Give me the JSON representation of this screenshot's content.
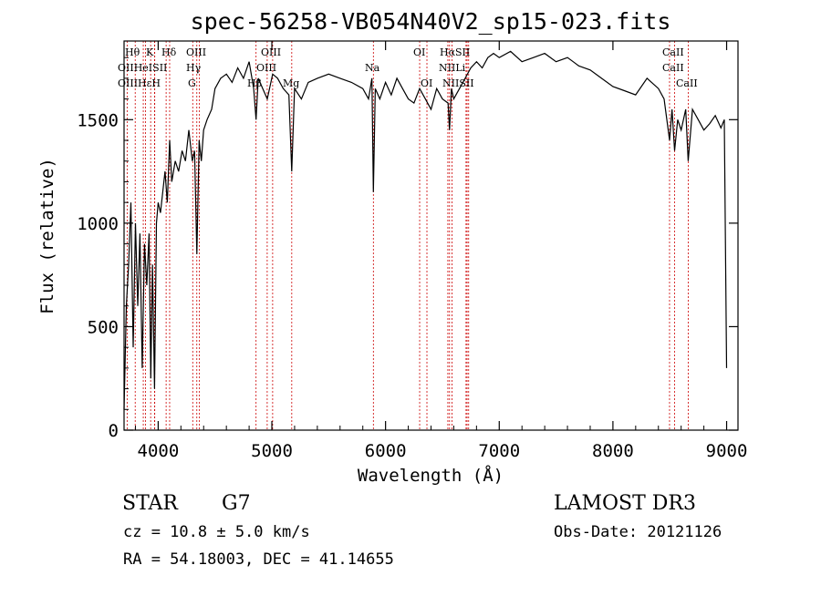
{
  "chart_data": {
    "type": "line",
    "title": "spec-56258-VB054N40V2_sp15-023.fits",
    "xlabel": "Wavelength (Å)",
    "ylabel": "Flux (relative)",
    "xlim": [
      3700,
      9100
    ],
    "ylim": [
      0,
      1880
    ],
    "xticks": [
      4000,
      5000,
      6000,
      7000,
      8000,
      9000
    ],
    "yticks": [
      0,
      500,
      1000,
      1500
    ],
    "series": [
      {
        "x": [
          3700,
          3720,
          3740,
          3760,
          3780,
          3800,
          3820,
          3840,
          3860,
          3880,
          3900,
          3920,
          3935,
          3950,
          3968,
          3985,
          4000,
          4020,
          4040,
          4060,
          4080,
          4101,
          4120,
          4150,
          4180,
          4210,
          4240,
          4270,
          4300,
          4320,
          4340,
          4360,
          4380,
          4400,
          4430,
          4470,
          4500,
          4550,
          4600,
          4650,
          4700,
          4750,
          4800,
          4840,
          4861,
          4880,
          4920,
          4960,
          5007,
          5050,
          5100,
          5150,
          5175,
          5200,
          5260,
          5320,
          5400,
          5500,
          5600,
          5700,
          5800,
          5850,
          5880,
          5893,
          5910,
          5950,
          6000,
          6050,
          6100,
          6150,
          6200,
          6250,
          6300,
          6350,
          6400,
          6450,
          6500,
          6550,
          6563,
          6580,
          6600,
          6650,
          6700,
          6750,
          6800,
          6850,
          6900,
          6950,
          7000,
          7100,
          7200,
          7300,
          7400,
          7500,
          7600,
          7650,
          7700,
          7800,
          7900,
          8000,
          8100,
          8200,
          8300,
          8400,
          8450,
          8498,
          8520,
          8542,
          8570,
          8600,
          8640,
          8662,
          8700,
          8750,
          8800,
          8850,
          8900,
          8950,
          8980,
          9000
        ],
        "values": [
          100,
          600,
          800,
          1100,
          400,
          1000,
          600,
          950,
          300,
          900,
          700,
          950,
          250,
          800,
          200,
          1000,
          1100,
          1050,
          1150,
          1250,
          1100,
          1400,
          1200,
          1300,
          1250,
          1350,
          1300,
          1450,
          1300,
          1350,
          850,
          1400,
          1300,
          1450,
          1500,
          1550,
          1650,
          1700,
          1720,
          1680,
          1750,
          1700,
          1780,
          1650,
          1500,
          1700,
          1650,
          1600,
          1720,
          1700,
          1650,
          1620,
          1250,
          1650,
          1600,
          1680,
          1700,
          1720,
          1700,
          1680,
          1650,
          1600,
          1700,
          1150,
          1650,
          1600,
          1680,
          1620,
          1700,
          1650,
          1600,
          1580,
          1650,
          1600,
          1550,
          1650,
          1600,
          1580,
          1450,
          1650,
          1600,
          1650,
          1700,
          1750,
          1780,
          1750,
          1800,
          1820,
          1800,
          1830,
          1780,
          1800,
          1820,
          1780,
          1800,
          1780,
          1760,
          1740,
          1700,
          1660,
          1640,
          1620,
          1700,
          1650,
          1600,
          1400,
          1550,
          1350,
          1500,
          1450,
          1550,
          1300,
          1550,
          1500,
          1450,
          1480,
          1520,
          1460,
          1500,
          300
        ]
      }
    ],
    "lines": [
      {
        "name": "Hθ",
        "x": 3798
      },
      {
        "name": "OII",
        "x": 3727
      },
      {
        "name": "OIII",
        "x": 3869
      },
      {
        "name": "K",
        "x": 3934
      },
      {
        "name": "HeI",
        "x": 3889
      },
      {
        "name": "Hε",
        "x": 3970
      },
      {
        "name": "H",
        "x": 3968
      },
      {
        "name": "SII",
        "x": 4070
      },
      {
        "name": "Hδ",
        "x": 4101
      },
      {
        "name": "G",
        "x": 4304
      },
      {
        "name": "OIII",
        "x": 4363
      },
      {
        "name": "Hγ",
        "x": 4340
      },
      {
        "name": "Hβ",
        "x": 4861
      },
      {
        "name": "OIII",
        "x": 4959
      },
      {
        "name": "OIII",
        "x": 5007
      },
      {
        "name": "Mg",
        "x": 5175
      },
      {
        "name": "Na",
        "x": 5893
      },
      {
        "name": "OI",
        "x": 6300
      },
      {
        "name": "OI",
        "x": 6364
      },
      {
        "name": "Hα",
        "x": 6563
      },
      {
        "name": "NII",
        "x": 6548
      },
      {
        "name": "NII",
        "x": 6584
      },
      {
        "name": "SII",
        "x": 6717
      },
      {
        "name": "Li",
        "x": 6708
      },
      {
        "name": "SII",
        "x": 6731
      },
      {
        "name": "CaII",
        "x": 8498
      },
      {
        "name": "CaII",
        "x": 8542
      },
      {
        "name": "CaII",
        "x": 8662
      }
    ]
  },
  "line_labels": {
    "l1": "Hθ",
    "l2": "K",
    "l3": "Hδ",
    "l4": "OIII",
    "l5": "OIII",
    "l6": "OI",
    "l7": "HαSII",
    "l8": "OIIHeISII",
    "l9": "Hγ",
    "l10": "OIII",
    "l11": "Na",
    "l12": "NIILi",
    "l13": "OIIIHεH",
    "l14": "G",
    "l15": "Hβ",
    "l16": "Mg",
    "l17": "OI",
    "l18": "NIISII",
    "l19": "CaII",
    "l20": "CaII",
    "l21": "CaII"
  },
  "info": {
    "class": "STAR",
    "subclass": "G7",
    "survey": "LAMOST DR3",
    "cz": "cz = 10.8 ± 5.0 km/s",
    "obsdate": "Obs-Date: 20121126",
    "radec": "RA =  54.18003, DEC =  41.14655"
  }
}
